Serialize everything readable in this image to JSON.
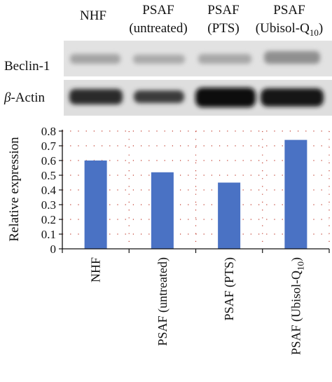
{
  "blot": {
    "lanes": [
      {
        "line1": "NHF",
        "line2": ""
      },
      {
        "line1": "PSAF",
        "line2": "(untreated)"
      },
      {
        "line1": "PSAF",
        "line2": "(PTS)"
      },
      {
        "line1": "PSAF",
        "line2": "(Ubisol-Q",
        "sub": "10",
        "close": ")"
      }
    ],
    "rows": [
      {
        "label": "Beclin-1",
        "greek": ""
      },
      {
        "label": "-Actin",
        "greek": "β"
      }
    ],
    "band_colors": {
      "background": "#e4e4e4",
      "beclin": "#9a9a9a",
      "actin": "#151515"
    }
  },
  "chart_data": {
    "type": "bar",
    "categories": [
      "NHF",
      "PSAF (untreated)",
      "PSAF (PTS)",
      "PSAF (Ubisol-Q"
    ],
    "category_subscripts": [
      "",
      "",
      "",
      "10"
    ],
    "category_suffix": [
      "",
      "",
      "",
      ")"
    ],
    "values": [
      0.6,
      0.52,
      0.45,
      0.74
    ],
    "title": "",
    "xlabel": "",
    "ylabel": "Relative expression",
    "ylim": [
      0,
      0.8
    ],
    "yticks": [
      "0",
      "0.1",
      "0.2",
      "0.3",
      "0.4",
      "0.5",
      "0.6",
      "0.7",
      "0.8"
    ],
    "grid": "dotted",
    "bar_color": "#4a72c4",
    "grid_color": "#c0392b"
  }
}
